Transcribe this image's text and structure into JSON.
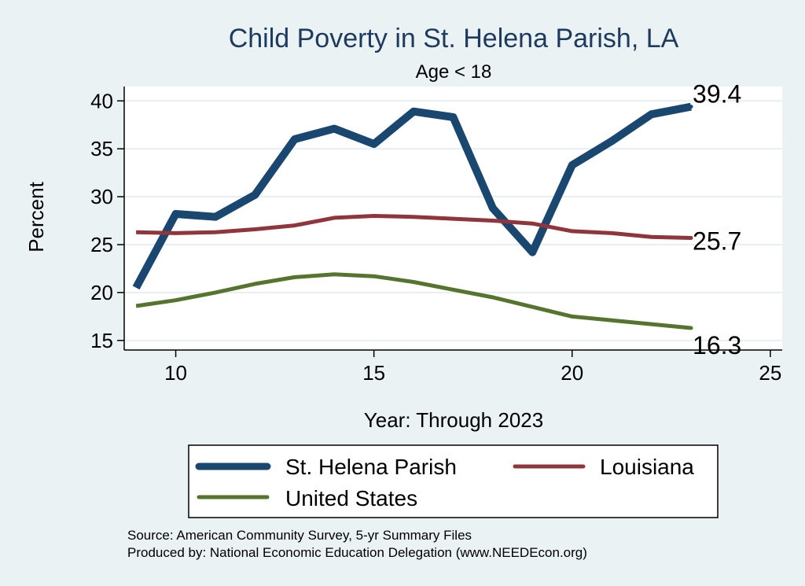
{
  "chart_data": {
    "type": "line",
    "title": "Child Poverty in St. Helena Parish, LA",
    "subtitle": "Age < 18",
    "xlabel": "Year: Through 2023",
    "ylabel": "Percent",
    "xlim": [
      8.7,
      25.3
    ],
    "ylim": [
      14,
      41.5
    ],
    "xticks": [
      10,
      15,
      20,
      25
    ],
    "yticks": [
      15,
      20,
      25,
      30,
      35,
      40
    ],
    "grid": true,
    "legend_position": "bottom",
    "series": [
      {
        "name": "St. Helena Parish",
        "color": "#1a476f",
        "x": [
          9,
          10,
          11,
          12,
          13,
          14,
          15,
          16,
          17,
          18,
          19,
          20,
          21,
          22,
          23
        ],
        "values": [
          20.5,
          28.2,
          27.9,
          30.2,
          36.0,
          37.1,
          35.5,
          38.9,
          38.3,
          28.8,
          24.2,
          33.3,
          35.8,
          38.6,
          39.4
        ],
        "end_label": "39.4"
      },
      {
        "name": "Louisiana",
        "color": "#90353b",
        "x": [
          9,
          10,
          11,
          12,
          13,
          14,
          15,
          16,
          17,
          18,
          19,
          20,
          21,
          22,
          23
        ],
        "values": [
          26.3,
          26.2,
          26.3,
          26.6,
          27.0,
          27.8,
          28.0,
          27.9,
          27.7,
          27.5,
          27.2,
          26.4,
          26.2,
          25.8,
          25.7
        ],
        "end_label": "25.7"
      },
      {
        "name": "United States",
        "color": "#55752f",
        "x": [
          9,
          10,
          11,
          12,
          13,
          14,
          15,
          16,
          17,
          18,
          19,
          20,
          21,
          22,
          23
        ],
        "values": [
          18.6,
          19.2,
          20.0,
          20.9,
          21.6,
          21.9,
          21.7,
          21.1,
          20.3,
          19.5,
          18.5,
          17.5,
          17.1,
          16.7,
          16.3
        ],
        "end_label": "16.3"
      }
    ]
  },
  "notes": {
    "source": "Source: American Community Survey, 5-yr Summary Files",
    "produced_by": "Produced by: National Economic Education Delegation (www.NEEDEcon.org)"
  }
}
